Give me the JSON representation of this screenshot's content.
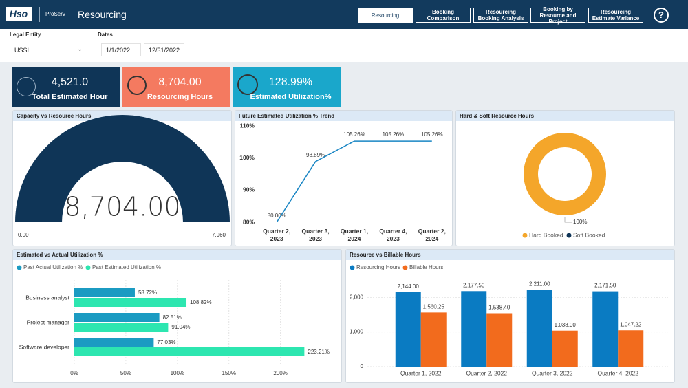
{
  "header": {
    "logo": "Hso",
    "app": "ProServ",
    "title": "Resourcing",
    "tabs": [
      "Resourcing",
      "Booking Comparison",
      "Resourcing Booking Analysis",
      "Booking by Resource and Project",
      "Resourcing Estimate Variance"
    ],
    "help": "?"
  },
  "filters": {
    "legal_entity": {
      "label": "Legal Entity",
      "value": "USSI"
    },
    "dates": {
      "label": "Dates",
      "start": "1/1/2022",
      "end": "12/31/2022"
    }
  },
  "kpis": [
    {
      "value": "4,521.0",
      "label": "Total Estimated Hour"
    },
    {
      "value": "8,704.00",
      "label": "Resourcing Hours"
    },
    {
      "value": "128.99%",
      "label": "Estimated Utilization%"
    }
  ],
  "chart_data": [
    {
      "type": "gauge",
      "title": "Capacity vs Resource Hours",
      "values": [
        8704
      ],
      "value_labels": [
        "8,704.00"
      ],
      "color": "#0f3557",
      "ylim": [
        0,
        7960
      ],
      "yticks": [
        {
          "value": 0,
          "label": "0.00"
        },
        {
          "value": 7960,
          "label": "7,960"
        }
      ]
    },
    {
      "type": "line",
      "title": "Future Estimated Utilization % Trend",
      "categories": [
        "Quarter 2, 2023",
        "Quarter 3, 2023",
        "Quarter 1, 2024",
        "Quarter 4, 2023",
        "Quarter 2, 2024"
      ],
      "values": [
        80.0,
        98.89,
        105.26,
        105.26,
        105.26
      ],
      "value_labels": [
        "80.00%",
        "98.89%",
        "105.26%",
        "105.26%",
        "105.26%"
      ],
      "color": "#1a86c4",
      "ylim": [
        80,
        110
      ],
      "yticks": [
        {
          "value": 80,
          "label": "80%"
        },
        {
          "value": 90,
          "label": "90%"
        },
        {
          "value": 100,
          "label": "100%"
        },
        {
          "value": 110,
          "label": "110%"
        }
      ]
    },
    {
      "type": "donut",
      "title": "Hard & Soft Resource Hours",
      "categories": [
        "Hard Booked",
        "Soft Booked"
      ],
      "values": [
        100,
        0
      ],
      "value_labels": [
        "100%",
        null
      ],
      "colors": [
        "#f4a62a",
        "#0f3557"
      ]
    },
    {
      "type": "hbar",
      "title": "Estimated vs Actual Utilization %",
      "categories": [
        "Business analyst",
        "Project manager",
        "Software developer"
      ],
      "series": [
        {
          "name": "Past Actual Utilization %",
          "color": "#1b9bc2",
          "values": [
            58.72,
            82.51,
            77.03
          ],
          "value_labels": [
            "58.72%",
            "82.51%",
            "77.03%"
          ]
        },
        {
          "name": "Past Estimated Utilization %",
          "color": "#2de6b0",
          "values": [
            108.82,
            91.04,
            223.21
          ],
          "value_labels": [
            "108.82%",
            "91.04%",
            "223.21%"
          ]
        }
      ],
      "xlim": [
        0,
        255
      ],
      "xticks": [
        {
          "value": 0,
          "label": "0%"
        },
        {
          "value": 50,
          "label": "50%"
        },
        {
          "value": 100,
          "label": "100%"
        },
        {
          "value": 150,
          "label": "150%"
        },
        {
          "value": 200,
          "label": "200%"
        }
      ],
      "grid": true
    },
    {
      "type": "bar",
      "title": "Resource vs Billable Hours",
      "categories": [
        "Quarter 1, 2022",
        "Quarter 2, 2022",
        "Quarter 3, 2022",
        "Quarter 4, 2022"
      ],
      "series": [
        {
          "name": "Resourcing Hours",
          "color": "#0a7bc2",
          "values": [
            2144.0,
            2177.5,
            2211.0,
            2171.5
          ],
          "value_labels": [
            "2,144.00",
            "2,177.50",
            "2,211.00",
            "2,171.50"
          ]
        },
        {
          "name": "Billable Hours",
          "color": "#f26b1d",
          "values": [
            1560.25,
            1538.4,
            1038.0,
            1047.22
          ],
          "value_labels": [
            "1,560.25",
            "1,538.40",
            "1,038.00",
            "1,047.22"
          ]
        }
      ],
      "ylim": [
        0,
        2600
      ],
      "yticks": [
        0,
        {
          "value": 1000,
          "label": "1,000"
        },
        {
          "value": 2000,
          "label": "2,000"
        }
      ],
      "grid": true
    }
  ]
}
